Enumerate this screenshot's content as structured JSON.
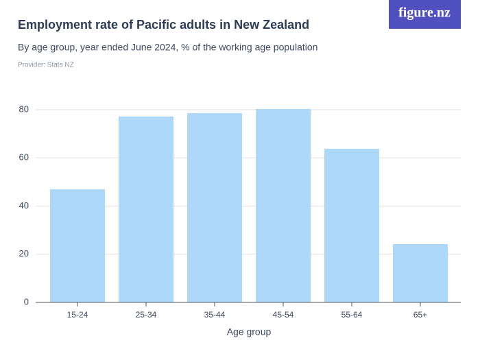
{
  "chart_data": {
    "type": "bar",
    "logo": "figure.nz",
    "title": "Employment rate of Pacific adults in New Zealand",
    "subtitle": "By age group, year ended June 2024, % of the working age population",
    "provider": "Provider: Stats NZ",
    "x_label": "Age group",
    "categories": [
      "15-24",
      "25-34",
      "35-44",
      "45-54",
      "55-64",
      "65+"
    ],
    "values": [
      47.0,
      77.2,
      78.6,
      80.3,
      63.8,
      24.2
    ],
    "color": "#aed8f9",
    "ylim": [
      0,
      80
    ],
    "yticks": [
      0,
      20,
      40,
      60,
      80
    ],
    "grid": true
  }
}
